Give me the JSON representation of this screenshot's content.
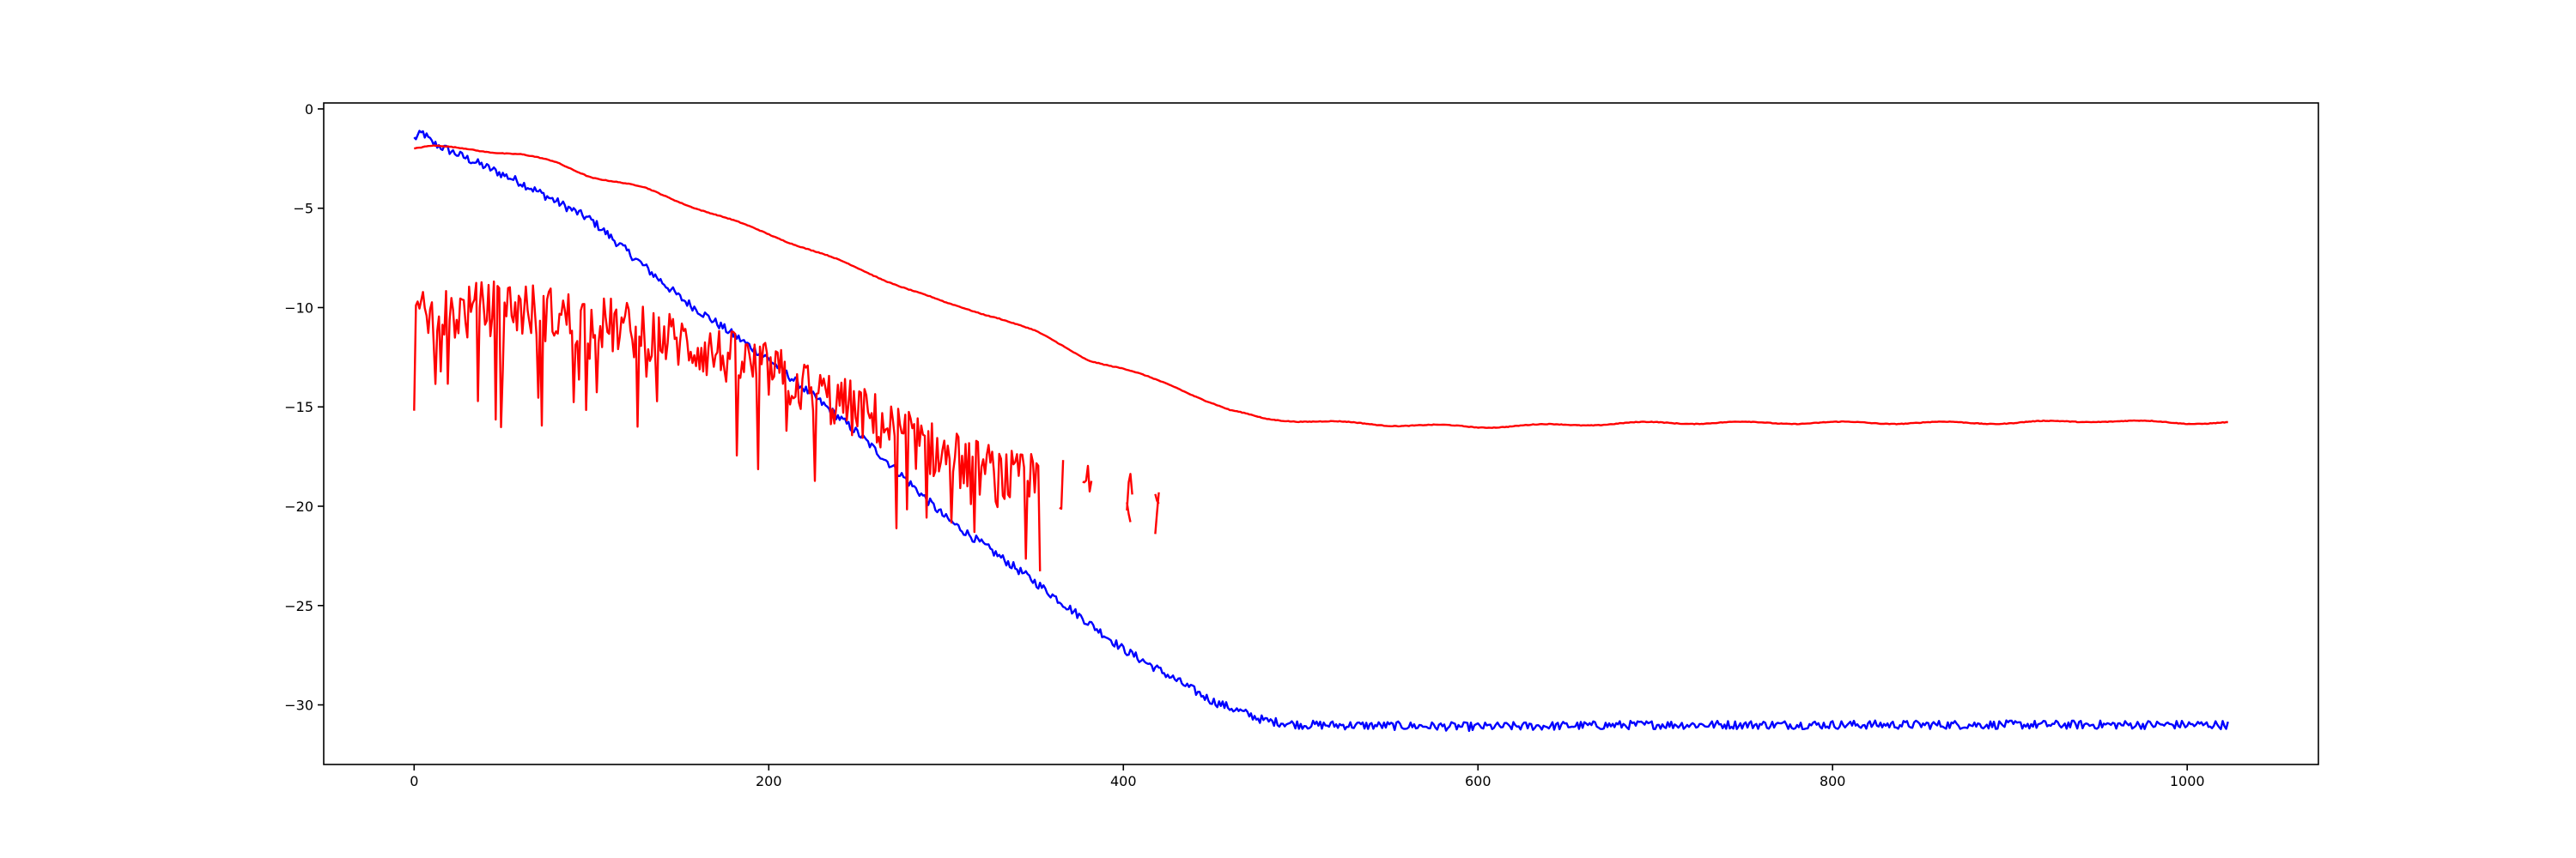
{
  "chart_data": {
    "type": "line",
    "title": "",
    "xlabel": "",
    "ylabel": "",
    "xlim": [
      -51,
      1074
    ],
    "ylim": [
      -33,
      0.3
    ],
    "xticks": [
      0,
      200,
      400,
      600,
      800,
      1000
    ],
    "yticks": [
      0,
      -5,
      -10,
      -15,
      -20,
      -25,
      -30
    ],
    "grid": false,
    "colors": {
      "blue": "#0000ff",
      "red": "#ff0000",
      "axes": "#000000"
    },
    "series": [
      {
        "color": "#0000ff",
        "style": "noisy",
        "noise": 0.22,
        "knots": [
          [
            0,
            -1.5
          ],
          [
            5,
            -1.2
          ],
          [
            10,
            -1.7
          ],
          [
            30,
            -2.5
          ],
          [
            60,
            -3.7
          ],
          [
            100,
            -5.6
          ],
          [
            150,
            -9.5
          ],
          [
            200,
            -12.6
          ],
          [
            250,
            -16.3
          ],
          [
            300,
            -20.6
          ],
          [
            350,
            -23.8
          ],
          [
            400,
            -27.2
          ],
          [
            450,
            -29.8
          ],
          [
            480,
            -30.8
          ],
          [
            500,
            -31.0
          ],
          [
            600,
            -31.1
          ],
          [
            700,
            -31.0
          ],
          [
            800,
            -31.0
          ],
          [
            900,
            -31.0
          ],
          [
            1000,
            -31.0
          ],
          [
            1023,
            -31.0
          ]
        ]
      },
      {
        "color": "#ff0000",
        "style": "smooth",
        "noise": 0.06,
        "knots": [
          [
            0,
            -2.0
          ],
          [
            10,
            -1.9
          ],
          [
            30,
            -2.0
          ],
          [
            60,
            -2.3
          ],
          [
            80,
            -2.7
          ],
          [
            100,
            -3.4
          ],
          [
            130,
            -4.0
          ],
          [
            160,
            -5.0
          ],
          [
            200,
            -6.3
          ],
          [
            230,
            -7.3
          ],
          [
            260,
            -8.4
          ],
          [
            300,
            -9.8
          ],
          [
            330,
            -10.5
          ],
          [
            350,
            -11.2
          ],
          [
            380,
            -12.6
          ],
          [
            400,
            -13.1
          ],
          [
            430,
            -14.0
          ],
          [
            460,
            -15.2
          ],
          [
            480,
            -15.6
          ],
          [
            500,
            -15.7
          ],
          [
            550,
            -15.9
          ],
          [
            600,
            -16.0
          ],
          [
            650,
            -15.9
          ],
          [
            700,
            -15.8
          ],
          [
            750,
            -15.8
          ],
          [
            800,
            -15.8
          ],
          [
            850,
            -15.8
          ],
          [
            900,
            -15.8
          ],
          [
            950,
            -15.7
          ],
          [
            1000,
            -15.8
          ],
          [
            1023,
            -15.8
          ]
        ]
      },
      {
        "color": "#ff0000",
        "style": "spiky",
        "amplitude": 1.8,
        "knots": [
          [
            0,
            -11.0
          ],
          [
            50,
            -10.2
          ],
          [
            100,
            -11.0
          ],
          [
            150,
            -12.0
          ],
          [
            200,
            -13.5
          ],
          [
            250,
            -15.5
          ],
          [
            300,
            -17.8
          ],
          [
            340,
            -19.0
          ],
          [
            380,
            -19.5
          ],
          [
            420,
            -20.0
          ]
        ],
        "gaps": [
          [
            353,
            364
          ],
          [
            366,
            377
          ],
          [
            382,
            402
          ],
          [
            405,
            418
          ]
        ],
        "segments": [
          [
            [
              402,
              -19.8
            ],
            [
              403,
              -20.4
            ],
            [
              404,
              -20.8
            ]
          ],
          [
            [
              418,
              -21.4
            ],
            [
              419,
              -20.3
            ],
            [
              420,
              -19.3
            ]
          ]
        ]
      }
    ]
  }
}
